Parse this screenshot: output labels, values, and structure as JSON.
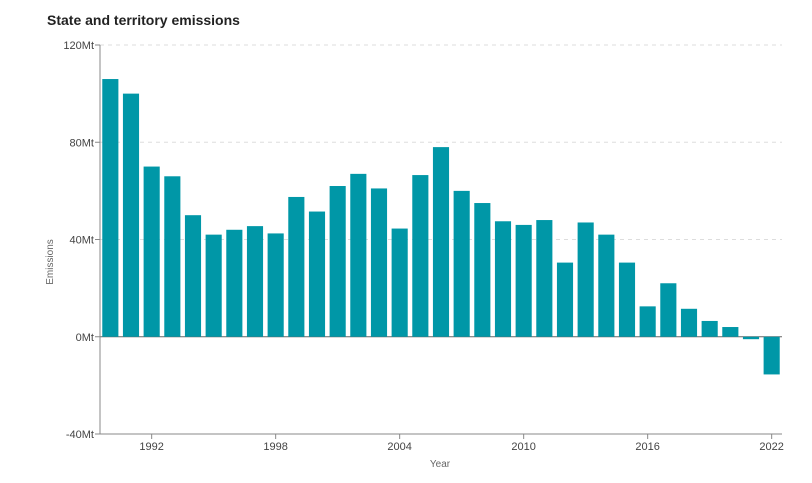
{
  "chart_data": {
    "type": "bar",
    "title": "State and territory emissions",
    "xlabel": "Year",
    "ylabel": "Emissions",
    "ylim": [
      -40,
      120
    ],
    "y_ticks": [
      {
        "value": 120,
        "label": "120Mt"
      },
      {
        "value": 80,
        "label": "80Mt"
      },
      {
        "value": 40,
        "label": "40Mt"
      },
      {
        "value": 0,
        "label": "0Mt"
      },
      {
        "value": -40,
        "label": "-40Mt"
      }
    ],
    "x_ticks": [
      {
        "value": 1992,
        "label": "1992"
      },
      {
        "value": 1998,
        "label": "1998"
      },
      {
        "value": 2004,
        "label": "2004"
      },
      {
        "value": 2010,
        "label": "2010"
      },
      {
        "value": 2016,
        "label": "2016"
      },
      {
        "value": 2022,
        "label": "2022"
      }
    ],
    "grid": true,
    "color": "#0097A7",
    "categories": [
      1990,
      1991,
      1992,
      1993,
      1994,
      1995,
      1996,
      1997,
      1998,
      1999,
      2000,
      2001,
      2002,
      2003,
      2004,
      2005,
      2006,
      2007,
      2008,
      2009,
      2010,
      2011,
      2012,
      2013,
      2014,
      2015,
      2016,
      2017,
      2018,
      2019,
      2020,
      2021,
      2022
    ],
    "values": [
      106,
      100,
      70,
      66,
      50,
      42,
      44,
      45.5,
      42.5,
      57.5,
      51.5,
      62,
      67,
      61,
      44.5,
      66.5,
      78,
      60,
      55,
      47.5,
      46,
      48,
      30.5,
      47,
      42,
      30.5,
      12.5,
      22,
      11.5,
      6.5,
      4,
      -1,
      -15.5
    ]
  }
}
